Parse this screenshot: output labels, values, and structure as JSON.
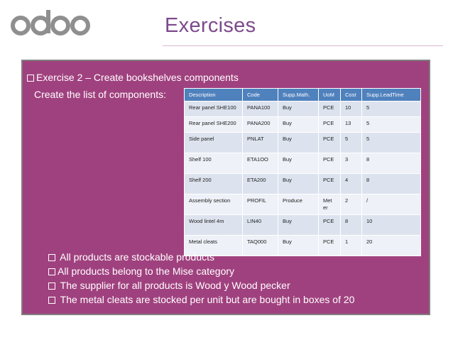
{
  "logo": {
    "text": "odoo",
    "color": "#875a7b",
    "accent": "#8f8f8f"
  },
  "slide": {
    "title": "Exercises"
  },
  "colors": {
    "panel": "#a0417f",
    "header": "#4f81bd",
    "row": "#dde3ee"
  },
  "intro": {
    "exercise": "Exercise 2 – Create bookshelves components",
    "instruction": "Create  the list of components:"
  },
  "table": {
    "headers": [
      "Description",
      "Code",
      "Supp.Math.",
      "UoM",
      "Cost",
      "Supp.LeadTime"
    ],
    "rows": [
      [
        "Rear panel SHE100",
        "PANA100",
        "Buy",
        "PCE",
        "10",
        "5"
      ],
      [
        "Rear panel SHE200",
        "PANA200",
        "Buy",
        "PCE",
        "13",
        "5"
      ],
      [
        "Side panel",
        "PNLAT",
        "Buy",
        "PCE",
        "5",
        "5"
      ],
      [
        "Shelf 100",
        "ETA1OO",
        "Buy",
        "PCE",
        "3",
        "8"
      ],
      [
        "Shelf 200",
        "ETA200",
        "Buy",
        "PCE",
        "4",
        "8"
      ],
      [
        "Assembly section",
        "PROFIL",
        "Produce",
        "Met er",
        "2",
        "/"
      ],
      [
        "Wood lintel 4m",
        "LIN40",
        "Buy",
        "PCE",
        "8",
        "10"
      ],
      [
        "Metal cleats",
        "TAQ000",
        "Buy",
        "PCE",
        "1",
        "20"
      ]
    ]
  },
  "bullets": [
    " All products are stockable products",
    "All products belong to the Mise category",
    " The supplier for all products is Wood y Wood pecker",
    " The metal cleats are stocked per unit but are bought in boxes of 20"
  ]
}
